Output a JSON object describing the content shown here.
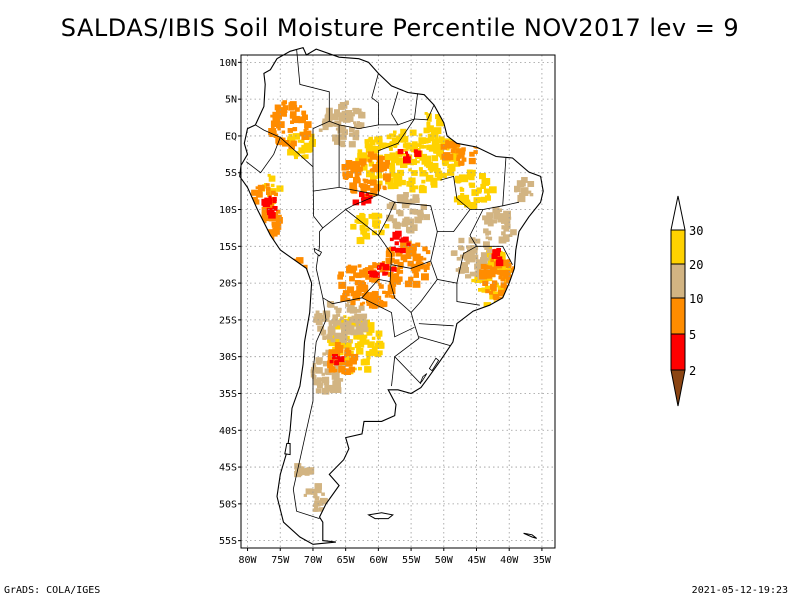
{
  "title": "SALDAS/IBIS Soil Moisture Percentile NOV2017 lev = 9",
  "footer": {
    "left": "GrADS: COLA/IGES",
    "right": "2021-05-12-19:23"
  },
  "map": {
    "lon_range": [
      -81,
      -33
    ],
    "lat_range": [
      -56,
      11
    ],
    "lat_ticks": [
      {
        "value": 10,
        "label": "10N"
      },
      {
        "value": 5,
        "label": "5N"
      },
      {
        "value": 0,
        "label": "EQ"
      },
      {
        "value": -5,
        "label": "5S"
      },
      {
        "value": -10,
        "label": "10S"
      },
      {
        "value": -15,
        "label": "15S"
      },
      {
        "value": -20,
        "label": "20S"
      },
      {
        "value": -25,
        "label": "25S"
      },
      {
        "value": -30,
        "label": "30S"
      },
      {
        "value": -35,
        "label": "35S"
      },
      {
        "value": -40,
        "label": "40S"
      },
      {
        "value": -45,
        "label": "45S"
      },
      {
        "value": -50,
        "label": "50S"
      },
      {
        "value": -55,
        "label": "55S"
      }
    ],
    "lon_ticks": [
      {
        "value": -80,
        "label": "80W"
      },
      {
        "value": -75,
        "label": "75W"
      },
      {
        "value": -70,
        "label": "70W"
      },
      {
        "value": -65,
        "label": "65W"
      },
      {
        "value": -60,
        "label": "60W"
      },
      {
        "value": -55,
        "label": "55W"
      },
      {
        "value": -50,
        "label": "50W"
      },
      {
        "value": -45,
        "label": "45W"
      },
      {
        "value": -40,
        "label": "40W"
      },
      {
        "value": -35,
        "label": "35W"
      }
    ],
    "coastline": [
      [
        -77.5,
        8.5
      ],
      [
        -76.5,
        9.0
      ],
      [
        -75.5,
        10.5
      ],
      [
        -73.5,
        11.5
      ],
      [
        -71.5,
        12.0
      ],
      [
        -71.0,
        11.0
      ],
      [
        -69.5,
        11.8
      ],
      [
        -66,
        10.7
      ],
      [
        -63,
        10.5
      ],
      [
        -61.5,
        10.0
      ],
      [
        -60,
        8.5
      ],
      [
        -58,
        6.8
      ],
      [
        -55.5,
        5.9
      ],
      [
        -53,
        5.6
      ],
      [
        -51.5,
        4.2
      ],
      [
        -50,
        1.8
      ],
      [
        -49.5,
        0
      ],
      [
        -48,
        -1.0
      ],
      [
        -45,
        -1.5
      ],
      [
        -42,
        -2.8
      ],
      [
        -39.5,
        -3.0
      ],
      [
        -37,
        -4.9
      ],
      [
        -35.2,
        -5.5
      ],
      [
        -34.8,
        -7.5
      ],
      [
        -35.2,
        -9.0
      ],
      [
        -37.0,
        -11.0
      ],
      [
        -38.5,
        -13.0
      ],
      [
        -39.0,
        -15.5
      ],
      [
        -39.2,
        -18.0
      ],
      [
        -40.0,
        -20.0
      ],
      [
        -41.0,
        -22.0
      ],
      [
        -43.0,
        -23.0
      ],
      [
        -45.5,
        -23.8
      ],
      [
        -48.0,
        -25.5
      ],
      [
        -48.6,
        -28.0
      ],
      [
        -50.5,
        -30.5
      ],
      [
        -52.5,
        -33.0
      ],
      [
        -53.5,
        -34.2
      ],
      [
        -55,
        -35.0
      ],
      [
        -57,
        -34.5
      ],
      [
        -58.5,
        -34.5
      ],
      [
        -57.3,
        -36.5
      ],
      [
        -57.5,
        -38.0
      ],
      [
        -59.5,
        -38.8
      ],
      [
        -62.2,
        -38.8
      ],
      [
        -62.5,
        -40.5
      ],
      [
        -65,
        -41.0
      ],
      [
        -64.5,
        -42.5
      ],
      [
        -65.3,
        -44.0
      ],
      [
        -67.5,
        -46.0
      ],
      [
        -66.0,
        -47.5
      ],
      [
        -68.0,
        -50.0
      ],
      [
        -69.0,
        -51.8
      ],
      [
        -68.5,
        -52.5
      ],
      [
        -68.5,
        -55.0
      ],
      [
        -66.5,
        -55.2
      ],
      [
        -70,
        -55.5
      ],
      [
        -72,
        -54.5
      ],
      [
        -74.5,
        -52.5
      ],
      [
        -75.5,
        -49.0
      ],
      [
        -75.0,
        -46.0
      ],
      [
        -74.0,
        -43.0
      ],
      [
        -73.5,
        -40.0
      ],
      [
        -73.2,
        -37.0
      ],
      [
        -72.0,
        -34.0
      ],
      [
        -71.5,
        -31.0
      ],
      [
        -71.3,
        -28.0
      ],
      [
        -70.5,
        -24.0
      ],
      [
        -70.2,
        -20.0
      ],
      [
        -71.0,
        -18.0
      ],
      [
        -75.0,
        -15.5
      ],
      [
        -76.5,
        -13.5
      ],
      [
        -78.5,
        -10.0
      ],
      [
        -80.0,
        -7.0
      ],
      [
        -81.2,
        -5.5
      ],
      [
        -81.0,
        -4.0
      ],
      [
        -80.0,
        -2.5
      ],
      [
        -80.5,
        -1.0
      ],
      [
        -80.0,
        1.0
      ],
      [
        -78.8,
        1.5
      ],
      [
        -77.5,
        4.0
      ],
      [
        -77.3,
        7.0
      ],
      [
        -77.5,
        8.5
      ]
    ],
    "borders": [
      [
        [
          -75.0,
          -0.2
        ],
        [
          -70.0,
          -4.2
        ],
        [
          -69.9,
          -10.9
        ],
        [
          -68.5,
          -12.5
        ],
        [
          -65.0,
          -10.0
        ],
        [
          -60.0,
          -13.5
        ],
        [
          -58.0,
          -16.0
        ],
        [
          -58.2,
          -19.8
        ],
        [
          -57.5,
          -22.0
        ],
        [
          -55.0,
          -24.0
        ],
        [
          -54.5,
          -25.6
        ],
        [
          -53.8,
          -27.5
        ],
        [
          -57.5,
          -30.0
        ],
        [
          -53.5,
          -33.7
        ]
      ],
      [
        [
          -69.5,
          -18.0
        ],
        [
          -68.5,
          -22.0
        ],
        [
          -67.0,
          -22.8
        ],
        [
          -62.5,
          -22.0
        ]
      ],
      [
        [
          -68.5,
          -22.0
        ],
        [
          -68.0,
          -25.0
        ],
        [
          -69.5,
          -28.0
        ],
        [
          -70.0,
          -32.0
        ],
        [
          -70.0,
          -36.0
        ],
        [
          -71.0,
          -40.0
        ],
        [
          -72.0,
          -44.0
        ],
        [
          -73.0,
          -48.0
        ],
        [
          -72.5,
          -51.0
        ],
        [
          -69.0,
          -52.0
        ]
      ],
      [
        [
          -62.5,
          -22.0
        ],
        [
          -60.0,
          -19.5
        ],
        [
          -58.2,
          -19.8
        ]
      ],
      [
        [
          -62.5,
          -22.0
        ],
        [
          -58.0,
          -24.0
        ],
        [
          -57.5,
          -27.3
        ],
        [
          -54.5,
          -26.0
        ]
      ],
      [
        [
          -58.0,
          -34.0
        ],
        [
          -57.5,
          -30.0
        ]
      ],
      [
        [
          -80.2,
          -3.5
        ],
        [
          -78.0,
          -5.0
        ],
        [
          -76.0,
          -2.5
        ],
        [
          -75.0,
          -0.2
        ]
      ],
      [
        [
          -75.0,
          -0.2
        ],
        [
          -77.5,
          0.8
        ],
        [
          -78.8,
          1.5
        ]
      ],
      [
        [
          -69.5,
          -18.0
        ],
        [
          -69.0,
          -15.0
        ],
        [
          -69.0,
          -13.0
        ],
        [
          -68.5,
          -12.5
        ]
      ],
      [
        [
          -72.5,
          11.8
        ],
        [
          -72.0,
          7.0
        ],
        [
          -67.5,
          6.0
        ],
        [
          -67.5,
          2.0
        ],
        [
          -70.0,
          1.0
        ],
        [
          -70.0,
          -4.2
        ]
      ],
      [
        [
          -60.0,
          8.5
        ],
        [
          -61.0,
          5.2
        ],
        [
          -60.0,
          4.5
        ],
        [
          -60.0,
          1.5
        ],
        [
          -63.0,
          1.0
        ],
        [
          -66.0,
          1.5
        ],
        [
          -67.5,
          2.0
        ]
      ],
      [
        [
          -57.0,
          6.0
        ],
        [
          -58.0,
          3.0
        ],
        [
          -57.0,
          1.5
        ],
        [
          -60.0,
          1.5
        ]
      ],
      [
        [
          -54.0,
          5.8
        ],
        [
          -54.5,
          2.3
        ],
        [
          -57.0,
          1.5
        ]
      ],
      [
        [
          -51.5,
          4.2
        ],
        [
          -52.5,
          2.2
        ],
        [
          -54.5,
          2.3
        ]
      ],
      [
        [
          -60.0,
          -8.0
        ],
        [
          -57.5,
          -9.0
        ],
        [
          -52.0,
          -9.5
        ],
        [
          -51.0,
          -13.0
        ],
        [
          -48.5,
          -13.0
        ],
        [
          -46.0,
          -10.0
        ],
        [
          -44.0,
          -10.0
        ]
      ],
      [
        [
          -57.5,
          -9.0
        ],
        [
          -58.5,
          -11.0
        ],
        [
          -60.0,
          -13.5
        ]
      ],
      [
        [
          -50.5,
          -6.0
        ],
        [
          -48.5,
          -5.5
        ],
        [
          -48.0,
          -8.5
        ],
        [
          -46.0,
          -10.0
        ]
      ],
      [
        [
          -44.0,
          -10.0
        ],
        [
          -41.0,
          -9.5
        ],
        [
          -38.5,
          -9.0
        ]
      ],
      [
        [
          -41.0,
          -9.5
        ],
        [
          -40.5,
          -3.0
        ]
      ],
      [
        [
          -44.0,
          -10.0
        ],
        [
          -46.0,
          -13.5
        ],
        [
          -45.0,
          -15.0
        ],
        [
          -41.0,
          -15.0
        ],
        [
          -39.5,
          -17.5
        ]
      ],
      [
        [
          -51.0,
          -13.0
        ],
        [
          -52.0,
          -17.0
        ],
        [
          -51.0,
          -19.5
        ],
        [
          -48.0,
          -20.0
        ],
        [
          -47.0,
          -16.0
        ],
        [
          -45.0,
          -15.0
        ]
      ],
      [
        [
          -52.0,
          -17.0
        ],
        [
          -55.0,
          -18.0
        ],
        [
          -58.0,
          -17.5
        ]
      ],
      [
        [
          -51.0,
          -19.5
        ],
        [
          -53.5,
          -22.5
        ],
        [
          -55.0,
          -24.0
        ]
      ],
      [
        [
          -48.0,
          -20.0
        ],
        [
          -48.0,
          -22.5
        ],
        [
          -44.5,
          -23.0
        ]
      ],
      [
        [
          -53.8,
          -25.5
        ],
        [
          -48.5,
          -25.8
        ]
      ],
      [
        [
          -53.8,
          -27.3
        ],
        [
          -49.0,
          -28.5
        ]
      ],
      [
        [
          -60.0,
          -8.0
        ],
        [
          -64.0,
          -9.5
        ],
        [
          -65.0,
          -10.0
        ]
      ],
      [
        [
          -60.0,
          -8.0
        ],
        [
          -60.0,
          -2.0
        ],
        [
          -57.0,
          -1.0
        ],
        [
          -54.5,
          2.3
        ]
      ],
      [
        [
          -66.0,
          -7.0
        ],
        [
          -70.0,
          -7.5
        ]
      ],
      [
        [
          -66.0,
          1.5
        ],
        [
          -66.0,
          -7.0
        ]
      ],
      [
        [
          -66.0,
          -7.0
        ],
        [
          -60.0,
          -8.0
        ]
      ]
    ],
    "islands": [
      {
        "name": "falkland",
        "points": [
          [
            -61.5,
            -51.5
          ],
          [
            -59.5,
            -51.2
          ],
          [
            -57.8,
            -51.5
          ],
          [
            -58.5,
            -52.0
          ],
          [
            -60.5,
            -52.0
          ],
          [
            -61.5,
            -51.5
          ]
        ]
      },
      {
        "name": "south-georgia",
        "points": [
          [
            -37.8,
            -54.0
          ],
          [
            -36.5,
            -54.2
          ],
          [
            -35.8,
            -54.7
          ],
          [
            -36.5,
            -54.5
          ],
          [
            -37.8,
            -54.0
          ]
        ]
      },
      {
        "name": "chiloe",
        "points": [
          [
            -74.0,
            -41.8
          ],
          [
            -73.5,
            -41.8
          ],
          [
            -73.5,
            -43.3
          ],
          [
            -74.3,
            -43.2
          ],
          [
            -74.0,
            -41.8
          ]
        ]
      }
    ],
    "lakes": [
      {
        "name": "titicaca",
        "points": [
          [
            -69.8,
            -15.3
          ],
          [
            -68.7,
            -15.8
          ],
          [
            -69.0,
            -16.3
          ],
          [
            -69.7,
            -15.8
          ],
          [
            -69.8,
            -15.3
          ]
        ]
      },
      {
        "name": "lagoa-dos-patos",
        "points": [
          [
            -51.2,
            -30.2
          ],
          [
            -50.8,
            -30.5
          ],
          [
            -51.8,
            -31.9
          ],
          [
            -52.2,
            -31.6
          ],
          [
            -51.2,
            -30.2
          ]
        ]
      },
      {
        "name": "lagoa-mirim",
        "points": [
          [
            -52.6,
            -32.3
          ],
          [
            -53.2,
            -32.7
          ],
          [
            -53.6,
            -33.6
          ],
          [
            -53.3,
            -33.3
          ],
          [
            -52.6,
            -32.3
          ]
        ]
      }
    ],
    "anomaly_patches": [
      {
        "cls": 4,
        "lon": -56,
        "lat": -3,
        "w": 16,
        "h": 8
      },
      {
        "cls": 4,
        "lon": -51,
        "lat": 1,
        "w": 6,
        "h": 6
      },
      {
        "cls": 4,
        "lon": -46,
        "lat": -7,
        "w": 6,
        "h": 5
      },
      {
        "cls": 4,
        "lon": -72,
        "lat": -1,
        "w": 5,
        "h": 4
      },
      {
        "cls": 4,
        "lon": -62,
        "lat": -12,
        "w": 6,
        "h": 4
      },
      {
        "cls": 4,
        "lon": -64,
        "lat": -28,
        "w": 8,
        "h": 8
      },
      {
        "cls": 4,
        "lon": -43,
        "lat": -19,
        "w": 6,
        "h": 8
      },
      {
        "cls": 4,
        "lon": -77,
        "lat": -7,
        "w": 3,
        "h": 4
      },
      {
        "cls": 3,
        "lon": -66,
        "lat": 2,
        "w": 7,
        "h": 6
      },
      {
        "cls": 3,
        "lon": -66,
        "lat": -25,
        "w": 8,
        "h": 6
      },
      {
        "cls": 3,
        "lon": -68,
        "lat": -32,
        "w": 5,
        "h": 6
      },
      {
        "cls": 3,
        "lon": -56,
        "lat": -10,
        "w": 6,
        "h": 5
      },
      {
        "cls": 3,
        "lon": -46,
        "lat": -16,
        "w": 6,
        "h": 6
      },
      {
        "cls": 3,
        "lon": -42,
        "lat": -12,
        "w": 5,
        "h": 5
      },
      {
        "cls": 3,
        "lon": -38,
        "lat": -7,
        "w": 3,
        "h": 3
      },
      {
        "cls": 3,
        "lon": -70,
        "lat": -49,
        "w": 3,
        "h": 4
      },
      {
        "cls": 3,
        "lon": -72,
        "lat": -45,
        "w": 2,
        "h": 3
      },
      {
        "cls": 2,
        "lon": -78,
        "lat": -10,
        "w": 5,
        "h": 8
      },
      {
        "cls": 2,
        "lon": -73,
        "lat": -20,
        "w": 3,
        "h": 8
      },
      {
        "cls": 2,
        "lon": -74,
        "lat": -28,
        "w": 3,
        "h": 8
      },
      {
        "cls": 2,
        "lon": -62,
        "lat": -20,
        "w": 10,
        "h": 6
      },
      {
        "cls": 2,
        "lon": -56,
        "lat": -17,
        "w": 8,
        "h": 6
      },
      {
        "cls": 2,
        "lon": -42,
        "lat": -19,
        "w": 6,
        "h": 6
      },
      {
        "cls": 2,
        "lon": -62,
        "lat": -5,
        "w": 8,
        "h": 6
      },
      {
        "cls": 2,
        "lon": -74,
        "lat": 2,
        "w": 6,
        "h": 6
      },
      {
        "cls": 2,
        "lon": -66,
        "lat": -30,
        "w": 4,
        "h": 5
      },
      {
        "cls": 2,
        "lon": -65,
        "lat": -45,
        "w": 2,
        "h": 2
      },
      {
        "cls": 2,
        "lon": -48,
        "lat": -2,
        "w": 6,
        "h": 4
      },
      {
        "cls": 1,
        "lon": -48,
        "lat": 3,
        "w": 3,
        "h": 3
      },
      {
        "cls": 1,
        "lon": -60,
        "lat": -18,
        "w": 4,
        "h": 2
      },
      {
        "cls": 1,
        "lon": -57,
        "lat": -14,
        "w": 3,
        "h": 3
      },
      {
        "cls": 1,
        "lon": -63,
        "lat": -8,
        "w": 3,
        "h": 2
      },
      {
        "cls": 1,
        "lon": -77,
        "lat": -9,
        "w": 2,
        "h": 3
      },
      {
        "cls": 1,
        "lon": -67,
        "lat": -30,
        "w": 2,
        "h": 2
      },
      {
        "cls": 1,
        "lon": -42,
        "lat": -16,
        "w": 2,
        "h": 2
      },
      {
        "cls": 1,
        "lon": -56,
        "lat": -2,
        "w": 3,
        "h": 2
      }
    ]
  },
  "colorbar": {
    "labels": [
      "30",
      "20",
      "10",
      "5",
      "2"
    ],
    "colors": {
      "above30": "#ffffff",
      "c20_30": "#ffd200",
      "c10_20": "#d2b482",
      "c5_10": "#ff8c00",
      "c2_5": "#ff0000",
      "below2": "#8b4513"
    }
  },
  "colors": {
    "border": "#000000",
    "grid": "#9a9a9a",
    "land": "#ffffff"
  }
}
